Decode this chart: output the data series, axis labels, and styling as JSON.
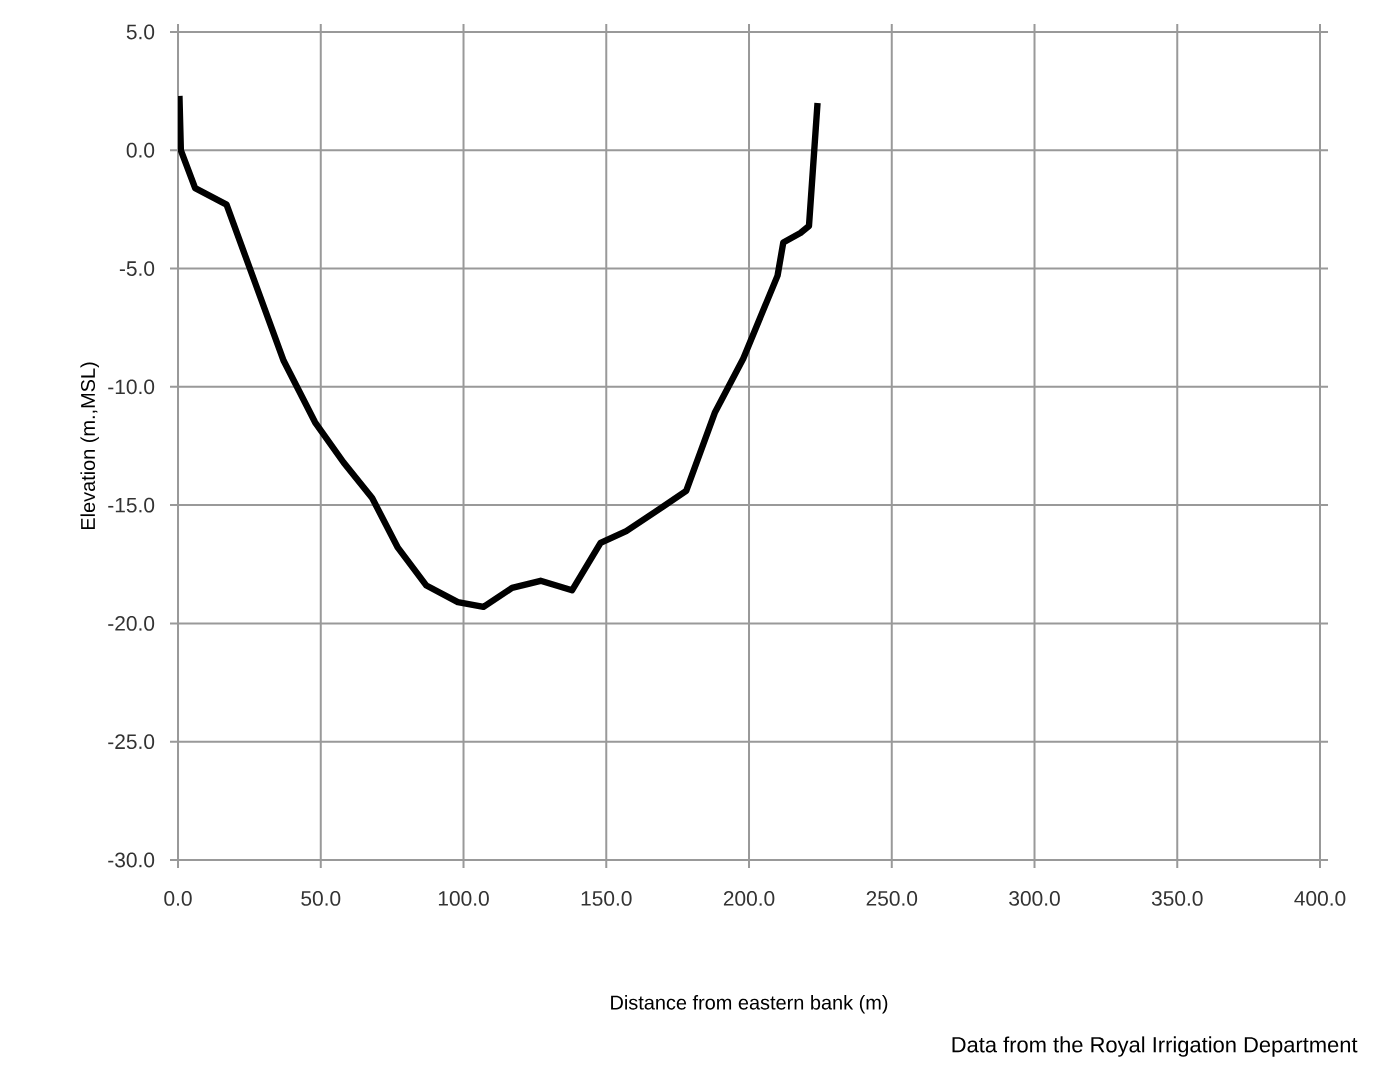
{
  "chart_data": {
    "type": "line",
    "xlabel": "Distance from eastern bank (m)",
    "ylabel": "Elevation (m.,MSL)",
    "annotations": [
      "Data from the Royal Irrigation Department"
    ],
    "series": [
      {
        "color": "#000000",
        "x": [
          0.5,
          1,
          6,
          17,
          27,
          37,
          48,
          58,
          68,
          77,
          87,
          98,
          107,
          117,
          127,
          138,
          148,
          157,
          167,
          178,
          188,
          198,
          210,
          212,
          218,
          221,
          224
        ],
        "values": [
          2.3,
          0,
          -1.6,
          -2.3,
          -5.6,
          -8.9,
          -11.5,
          -13.2,
          -14.7,
          -16.8,
          -18.4,
          -19.1,
          -19.3,
          -18.5,
          -18.2,
          -18.6,
          -16.6,
          -16.1,
          -15.3,
          -14.4,
          -11.1,
          -8.8,
          -5.3,
          -3.9,
          -3.5,
          -3.2,
          2.0
        ]
      }
    ],
    "xlim": [
      0,
      400
    ],
    "ylim": [
      -30,
      5
    ],
    "xticks": [
      {
        "value": 0,
        "label": "0.0"
      },
      {
        "value": 50,
        "label": "50.0"
      },
      {
        "value": 100,
        "label": "100.0"
      },
      {
        "value": 150,
        "label": "150.0"
      },
      {
        "value": 200,
        "label": "200.0"
      },
      {
        "value": 250,
        "label": "250.0"
      },
      {
        "value": 300,
        "label": "300.0"
      },
      {
        "value": 350,
        "label": "350.0"
      },
      {
        "value": 400,
        "label": "400.0"
      }
    ],
    "yticks": [
      {
        "value": -30,
        "label": "-30.0"
      },
      {
        "value": -25,
        "label": "-25.0"
      },
      {
        "value": -20,
        "label": "-20.0"
      },
      {
        "value": -15,
        "label": "-15.0"
      },
      {
        "value": -10,
        "label": "-10.0"
      },
      {
        "value": -5,
        "label": "-5.0"
      },
      {
        "value": 0,
        "label": "0.0"
      },
      {
        "value": 5,
        "label": "5.0"
      }
    ],
    "grid": true,
    "marker": "none",
    "line_style": "solid"
  }
}
